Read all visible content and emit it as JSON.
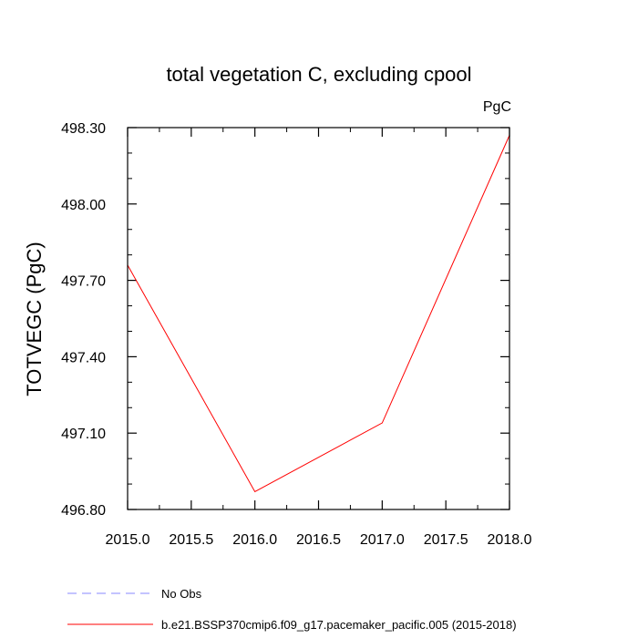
{
  "chart_data": {
    "type": "line",
    "title": "total vegetation C, excluding cpool",
    "units_label": "PgC",
    "ylabel": "TOTVEGC  (PgC)",
    "xlabel": "",
    "xlim": [
      2015.0,
      2018.0
    ],
    "ylim": [
      496.8,
      498.3
    ],
    "x_ticks": [
      2015.0,
      2015.5,
      2016.0,
      2016.5,
      2017.0,
      2017.5,
      2018.0
    ],
    "x_tick_labels": [
      "2015.0",
      "2015.5",
      "2016.0",
      "2016.5",
      "2017.0",
      "2017.5",
      "2018.0"
    ],
    "y_ticks": [
      496.8,
      497.1,
      497.4,
      497.7,
      498.0,
      498.3
    ],
    "y_tick_labels": [
      "496.80",
      "497.10",
      "497.40",
      "497.70",
      "498.00",
      "498.30"
    ],
    "x_minor_step": 0.25,
    "y_minor_step": 0.1,
    "grid": false,
    "legend_position": "bottom-left below plot",
    "series": [
      {
        "name": "No Obs",
        "color": "#8a8aff",
        "dash": "dashed",
        "x": [],
        "values": []
      },
      {
        "name": "b.e21.BSSP370cmip6.f09_g17.pacemaker_pacific.005 (2015-2018)",
        "color": "#ff0000",
        "dash": "solid",
        "x": [
          2015.0,
          2016.0,
          2017.0,
          2018.0
        ],
        "values": [
          497.76,
          496.87,
          497.14,
          498.27
        ]
      }
    ]
  }
}
